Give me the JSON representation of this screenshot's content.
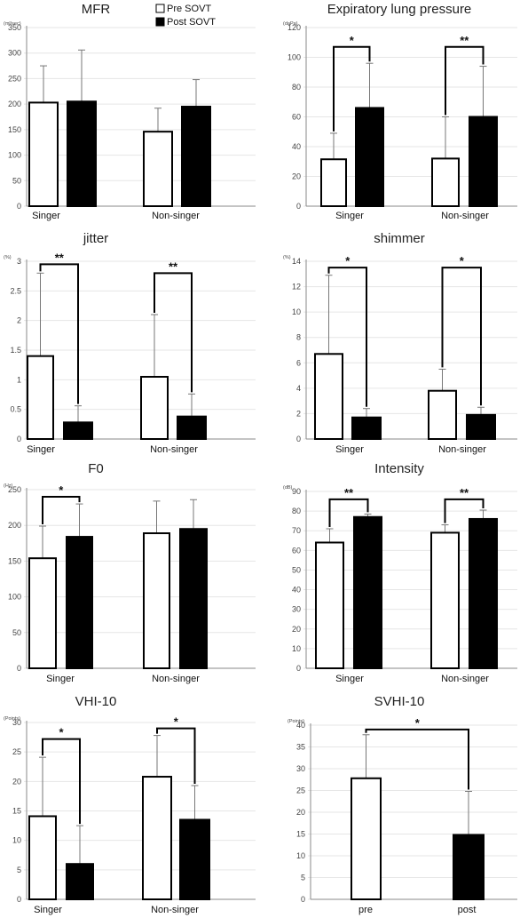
{
  "legend": [
    {
      "name": "Pre SOVT",
      "color": "#ffffff"
    },
    {
      "name": "Post SOVT",
      "color": "#000000"
    }
  ],
  "colors": {
    "pre": "#ffffff",
    "post": "#000000",
    "axis": "#888888",
    "text": "#222222"
  },
  "chart_data": [
    {
      "type": "bar",
      "title": "MFR",
      "unit": "(ml/sec)",
      "categories": [
        "Singer",
        "Non-singer"
      ],
      "series": [
        {
          "name": "Pre SOVT",
          "values": [
            203,
            146
          ],
          "errors": [
            72,
            46
          ]
        },
        {
          "name": "Post SOVT",
          "values": [
            205,
            195
          ],
          "errors": [
            101,
            53
          ]
        }
      ],
      "ylim": [
        0,
        350
      ],
      "yticks": [
        0,
        50,
        100,
        150,
        200,
        250,
        300,
        350
      ],
      "significance": []
    },
    {
      "type": "bar",
      "title": "Expiratory lung pressure",
      "unit": "(daPa)",
      "categories": [
        "Singer",
        "Non-singer"
      ],
      "series": [
        {
          "name": "Pre SOVT",
          "values": [
            31.5,
            32
          ],
          "errors": [
            17.5,
            28
          ]
        },
        {
          "name": "Post SOVT",
          "values": [
            66,
            60
          ],
          "errors": [
            30,
            34
          ]
        }
      ],
      "ylim": [
        0,
        120
      ],
      "yticks": [
        0,
        20,
        40,
        60,
        80,
        100,
        120
      ],
      "significance": [
        {
          "group": 0,
          "label": "*",
          "y": 107
        },
        {
          "group": 1,
          "label": "**",
          "y": 107
        }
      ]
    },
    {
      "type": "bar",
      "title": "jitter",
      "unit": "(%)",
      "categories": [
        "Singer",
        "Non-singer"
      ],
      "series": [
        {
          "name": "Pre SOVT",
          "values": [
            1.4,
            1.05
          ],
          "errors": [
            1.4,
            1.05
          ]
        },
        {
          "name": "Post SOVT",
          "values": [
            0.28,
            0.38
          ],
          "errors": [
            0.28,
            0.38
          ]
        }
      ],
      "ylim": [
        0,
        3
      ],
      "yticks": [
        0,
        0.5,
        1,
        1.5,
        2,
        2.5,
        3
      ],
      "significance": [
        {
          "group": 0,
          "label": "**",
          "y": 2.95
        },
        {
          "group": 1,
          "label": "**",
          "y": 2.8
        }
      ]
    },
    {
      "type": "bar",
      "title": "shimmer",
      "unit": "(%)",
      "categories": [
        "Singer",
        "Non-singer"
      ],
      "series": [
        {
          "name": "Pre SOVT",
          "values": [
            6.7,
            3.8
          ],
          "errors": [
            6.2,
            1.7
          ]
        },
        {
          "name": "Post SOVT",
          "values": [
            1.7,
            1.9
          ],
          "errors": [
            0.7,
            0.6
          ]
        }
      ],
      "ylim": [
        0,
        14
      ],
      "yticks": [
        0,
        2,
        4,
        6,
        8,
        10,
        12,
        14
      ],
      "significance": [
        {
          "group": 0,
          "label": "*",
          "y": 13.5
        },
        {
          "group": 1,
          "label": "*",
          "y": 13.5
        }
      ]
    },
    {
      "type": "bar",
      "title": "F0",
      "unit": "(Hz)",
      "categories": [
        "Singer",
        "Non-singer"
      ],
      "series": [
        {
          "name": "Pre SOVT",
          "values": [
            154,
            189
          ],
          "errors": [
            45,
            45
          ]
        },
        {
          "name": "Post SOVT",
          "values": [
            184,
            195
          ],
          "errors": [
            46,
            41
          ]
        }
      ],
      "ylim": [
        0,
        250
      ],
      "yticks": [
        0,
        50,
        100,
        150,
        200,
        250
      ],
      "significance": [
        {
          "group": 0,
          "label": "*",
          "y": 240
        }
      ]
    },
    {
      "type": "bar",
      "title": "Intensity",
      "unit": "(dB)",
      "categories": [
        "Singer",
        "Non-singer"
      ],
      "series": [
        {
          "name": "Pre SOVT",
          "values": [
            64,
            69
          ],
          "errors": [
            7,
            4
          ]
        },
        {
          "name": "Post SOVT",
          "values": [
            77,
            76
          ],
          "errors": [
            1.5,
            4.5
          ]
        }
      ],
      "ylim": [
        0,
        90
      ],
      "yticks": [
        0,
        10,
        20,
        30,
        40,
        50,
        60,
        70,
        80,
        90
      ],
      "significance": [
        {
          "group": 0,
          "label": "**",
          "y": 86
        },
        {
          "group": 1,
          "label": "**",
          "y": 86
        }
      ]
    },
    {
      "type": "bar",
      "title": "VHI-10",
      "unit": "(Points)",
      "categories": [
        "Singer",
        "Non-singer"
      ],
      "series": [
        {
          "name": "Pre SOVT",
          "values": [
            14.1,
            20.8
          ],
          "errors": [
            10,
            7
          ]
        },
        {
          "name": "Post SOVT",
          "values": [
            6,
            13.5
          ],
          "errors": [
            6.5,
            5.8
          ]
        }
      ],
      "ylim": [
        0,
        30
      ],
      "yticks": [
        0,
        5,
        10,
        15,
        20,
        25,
        30
      ],
      "significance": [
        {
          "group": 0,
          "label": "*",
          "y": 27.2
        },
        {
          "group": 1,
          "label": "*",
          "y": 29
        }
      ]
    },
    {
      "type": "bar",
      "title": "SVHI-10",
      "unit": "(Points)",
      "categories": [
        "pre",
        "post"
      ],
      "single_series": true,
      "bars": [
        {
          "category": "pre",
          "value": 27.8,
          "error": 10,
          "color": "#ffffff"
        },
        {
          "category": "post",
          "value": 14.8,
          "error": 10,
          "color": "#000000"
        }
      ],
      "ylim": [
        0,
        40
      ],
      "yticks": [
        0,
        5,
        10,
        15,
        20,
        25,
        30,
        35,
        40
      ],
      "significance": [
        {
          "group": "across",
          "label": "*",
          "y": 39
        }
      ]
    }
  ]
}
